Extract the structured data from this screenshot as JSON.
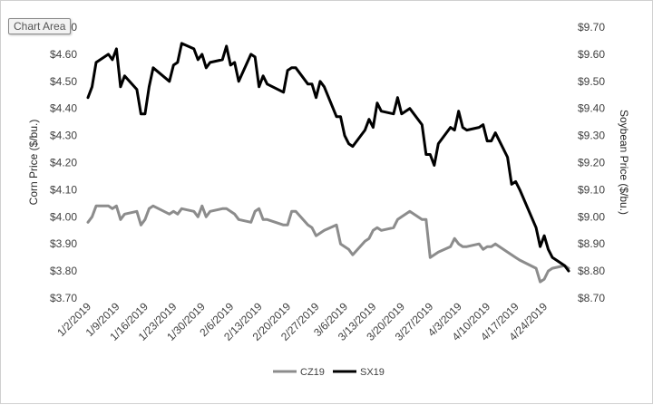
{
  "tooltip": "Chart Area",
  "chart_data": {
    "type": "line",
    "x_range": [
      "2019-01-02",
      "2019-04-30"
    ],
    "x_ticks": [
      "1/2/2019",
      "1/9/2019",
      "1/16/2019",
      "1/23/2019",
      "1/30/2019",
      "2/6/2019",
      "2/13/2019",
      "2/20/2019",
      "2/27/2019",
      "3/6/2019",
      "3/13/2019",
      "3/20/2019",
      "3/27/2019",
      "4/3/2019",
      "4/10/2019",
      "4/17/2019",
      "4/24/2019"
    ],
    "y_left": {
      "label": "Corn Price ($/bu.)",
      "lim": [
        3.7,
        4.7
      ],
      "ticks": [
        "$3.70",
        "$3.80",
        "$3.90",
        "$4.00",
        "$4.10",
        "$4.20",
        "$4.30",
        "$4.40",
        "$4.50",
        "$4.60",
        "$4.70"
      ]
    },
    "y_right": {
      "label": "Soybean Price ($/bu.)",
      "lim": [
        8.7,
        9.7
      ],
      "ticks": [
        "$8.70",
        "$8.80",
        "$8.90",
        "$9.00",
        "$9.10",
        "$9.20",
        "$9.30",
        "$9.40",
        "$9.50",
        "$9.60",
        "$9.70"
      ]
    },
    "grid": false,
    "legend_position": "bottom",
    "series": [
      {
        "name": "CZ19",
        "axis": "left",
        "color": "#8c8c8c",
        "x": [
          "2019-01-02",
          "2019-01-03",
          "2019-01-04",
          "2019-01-07",
          "2019-01-08",
          "2019-01-09",
          "2019-01-10",
          "2019-01-11",
          "2019-01-14",
          "2019-01-15",
          "2019-01-16",
          "2019-01-17",
          "2019-01-18",
          "2019-01-22",
          "2019-01-23",
          "2019-01-24",
          "2019-01-25",
          "2019-01-28",
          "2019-01-29",
          "2019-01-30",
          "2019-01-31",
          "2019-02-01",
          "2019-02-04",
          "2019-02-05",
          "2019-02-06",
          "2019-02-07",
          "2019-02-08",
          "2019-02-11",
          "2019-02-12",
          "2019-02-13",
          "2019-02-14",
          "2019-02-15",
          "2019-02-19",
          "2019-02-20",
          "2019-02-21",
          "2019-02-22",
          "2019-02-25",
          "2019-02-26",
          "2019-02-27",
          "2019-02-28",
          "2019-03-01",
          "2019-03-04",
          "2019-03-05",
          "2019-03-06",
          "2019-03-07",
          "2019-03-08",
          "2019-03-11",
          "2019-03-12",
          "2019-03-13",
          "2019-03-14",
          "2019-03-15",
          "2019-03-18",
          "2019-03-19",
          "2019-03-20",
          "2019-03-21",
          "2019-03-22",
          "2019-03-25",
          "2019-03-26",
          "2019-03-27",
          "2019-03-28",
          "2019-03-29",
          "2019-04-01",
          "2019-04-02",
          "2019-04-03",
          "2019-04-04",
          "2019-04-05",
          "2019-04-08",
          "2019-04-09",
          "2019-04-10",
          "2019-04-11",
          "2019-04-12",
          "2019-04-15",
          "2019-04-16",
          "2019-04-17",
          "2019-04-18",
          "2019-04-22",
          "2019-04-23",
          "2019-04-24",
          "2019-04-25",
          "2019-04-26",
          "2019-04-29",
          "2019-04-30"
        ],
        "values": [
          3.98,
          4.0,
          4.04,
          4.04,
          4.03,
          4.04,
          3.99,
          4.01,
          4.02,
          3.97,
          3.99,
          4.03,
          4.04,
          4.01,
          4.02,
          4.01,
          4.03,
          4.02,
          4.0,
          4.04,
          4.0,
          4.02,
          4.03,
          4.03,
          4.02,
          4.01,
          3.99,
          3.98,
          4.02,
          4.03,
          3.99,
          3.99,
          3.97,
          3.97,
          4.02,
          4.02,
          3.97,
          3.96,
          3.93,
          3.94,
          3.95,
          3.97,
          3.9,
          3.89,
          3.88,
          3.86,
          3.91,
          3.92,
          3.95,
          3.96,
          3.95,
          3.96,
          3.99,
          4.0,
          4.01,
          4.02,
          3.99,
          3.99,
          3.85,
          3.86,
          3.87,
          3.89,
          3.92,
          3.9,
          3.89,
          3.89,
          3.9,
          3.88,
          3.89,
          3.89,
          3.9,
          3.87,
          3.86,
          3.85,
          3.84,
          3.81,
          3.76,
          3.77,
          3.8,
          3.81,
          3.82,
          3.81
        ]
      },
      {
        "name": "SX19",
        "axis": "right",
        "color": "#000000",
        "x": [
          "2019-01-02",
          "2019-01-03",
          "2019-01-04",
          "2019-01-07",
          "2019-01-08",
          "2019-01-09",
          "2019-01-10",
          "2019-01-11",
          "2019-01-14",
          "2019-01-15",
          "2019-01-16",
          "2019-01-17",
          "2019-01-18",
          "2019-01-22",
          "2019-01-23",
          "2019-01-24",
          "2019-01-25",
          "2019-01-28",
          "2019-01-29",
          "2019-01-30",
          "2019-01-31",
          "2019-02-01",
          "2019-02-04",
          "2019-02-05",
          "2019-02-06",
          "2019-02-07",
          "2019-02-08",
          "2019-02-11",
          "2019-02-12",
          "2019-02-13",
          "2019-02-14",
          "2019-02-15",
          "2019-02-19",
          "2019-02-20",
          "2019-02-21",
          "2019-02-22",
          "2019-02-25",
          "2019-02-26",
          "2019-02-27",
          "2019-02-28",
          "2019-03-01",
          "2019-03-04",
          "2019-03-05",
          "2019-03-06",
          "2019-03-07",
          "2019-03-08",
          "2019-03-11",
          "2019-03-12",
          "2019-03-13",
          "2019-03-14",
          "2019-03-15",
          "2019-03-18",
          "2019-03-19",
          "2019-03-20",
          "2019-03-21",
          "2019-03-22",
          "2019-03-25",
          "2019-03-26",
          "2019-03-27",
          "2019-03-28",
          "2019-03-29",
          "2019-04-01",
          "2019-04-02",
          "2019-04-03",
          "2019-04-04",
          "2019-04-05",
          "2019-04-08",
          "2019-04-09",
          "2019-04-10",
          "2019-04-11",
          "2019-04-12",
          "2019-04-15",
          "2019-04-16",
          "2019-04-17",
          "2019-04-18",
          "2019-04-22",
          "2019-04-23",
          "2019-04-24",
          "2019-04-25",
          "2019-04-26",
          "2019-04-29",
          "2019-04-30"
        ],
        "values": [
          9.44,
          9.48,
          9.57,
          9.6,
          9.58,
          9.62,
          9.48,
          9.52,
          9.47,
          9.38,
          9.38,
          9.48,
          9.55,
          9.5,
          9.56,
          9.57,
          9.64,
          9.62,
          9.58,
          9.6,
          9.55,
          9.57,
          9.58,
          9.63,
          9.56,
          9.57,
          9.5,
          9.6,
          9.59,
          9.48,
          9.52,
          9.49,
          9.46,
          9.54,
          9.55,
          9.55,
          9.49,
          9.49,
          9.44,
          9.5,
          9.48,
          9.37,
          9.37,
          9.3,
          9.27,
          9.26,
          9.32,
          9.36,
          9.33,
          9.42,
          9.39,
          9.38,
          9.44,
          9.38,
          9.39,
          9.4,
          9.34,
          9.23,
          9.23,
          9.19,
          9.27,
          9.33,
          9.32,
          9.39,
          9.33,
          9.32,
          9.33,
          9.34,
          9.28,
          9.28,
          9.31,
          9.22,
          9.12,
          9.13,
          9.1,
          8.96,
          8.89,
          8.93,
          8.88,
          8.85,
          8.82,
          8.8
        ]
      }
    ]
  }
}
